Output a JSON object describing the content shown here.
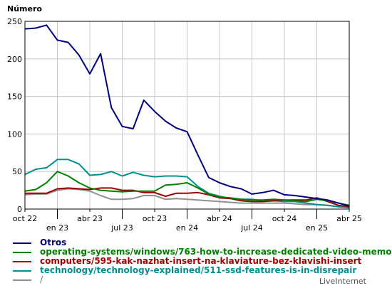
{
  "chart_data": {
    "type": "line",
    "ylabel": "Número",
    "ylim": [
      0,
      250
    ],
    "yticks": [
      0,
      50,
      100,
      150,
      200,
      250
    ],
    "grid": true,
    "legend_position": "bottom",
    "x": [
      "2022-10",
      "2022-11",
      "2022-12",
      "2023-01",
      "2023-02",
      "2023-03",
      "2023-04",
      "2023-05",
      "2023-06",
      "2023-07",
      "2023-08",
      "2023-09",
      "2023-10",
      "2023-11",
      "2023-12",
      "2024-01",
      "2024-02",
      "2024-03",
      "2024-04",
      "2024-05",
      "2024-06",
      "2024-07",
      "2024-08",
      "2024-09",
      "2024-10",
      "2024-11",
      "2024-12",
      "2025-01",
      "2025-02",
      "2025-03",
      "2025-04"
    ],
    "xticks": [
      {
        "index": 0,
        "label": "oct 22",
        "row": 0
      },
      {
        "index": 3,
        "label": "en 23",
        "row": 1
      },
      {
        "index": 6,
        "label": "abr 23",
        "row": 0
      },
      {
        "index": 9,
        "label": "jul 23",
        "row": 1
      },
      {
        "index": 12,
        "label": "oct 23",
        "row": 0
      },
      {
        "index": 15,
        "label": "en 24",
        "row": 1
      },
      {
        "index": 18,
        "label": "abr 24",
        "row": 0
      },
      {
        "index": 21,
        "label": "jul 24",
        "row": 1
      },
      {
        "index": 24,
        "label": "oct 24",
        "row": 0
      },
      {
        "index": 27,
        "label": "en 25",
        "row": 1
      },
      {
        "index": 30,
        "label": "abr 25",
        "row": 0
      }
    ],
    "series": [
      {
        "name": "Otros",
        "color": "#00007f",
        "values": [
          240,
          241,
          245,
          225,
          222,
          205,
          180,
          207,
          135,
          110,
          107,
          145,
          130,
          117,
          108,
          103,
          72,
          42,
          35,
          30,
          27,
          20,
          22,
          25,
          19,
          18,
          16,
          14,
          12,
          8,
          4
        ]
      },
      {
        "name": "operating-systems/windows/763-how-to-increase-dedicated-video-memo",
        "color": "#008000",
        "values": [
          24,
          26,
          35,
          50,
          44,
          35,
          28,
          25,
          24,
          23,
          24,
          24,
          24,
          32,
          33,
          35,
          28,
          20,
          16,
          15,
          13,
          12,
          12,
          13,
          12,
          11,
          10,
          13,
          11,
          8,
          5
        ]
      },
      {
        "name": "computers/595-kak-nazhat-insert-na-klaviature-bez-klavishi-insert",
        "color": "#a00000",
        "values": [
          21,
          21,
          21,
          27,
          28,
          27,
          26,
          28,
          28,
          25,
          25,
          22,
          22,
          17,
          21,
          21,
          22,
          19,
          15,
          14,
          11,
          10,
          10,
          11,
          12,
          12,
          12,
          15,
          10,
          5,
          3
        ]
      },
      {
        "name": "technology/technology-explained/511-ssd-features-is-in-disrepair",
        "color": "#009090",
        "values": [
          46,
          53,
          55,
          66,
          66,
          60,
          45,
          46,
          50,
          44,
          49,
          45,
          43,
          44,
          44,
          43,
          30,
          21,
          17,
          14,
          13,
          13,
          11,
          11,
          10,
          10,
          8,
          6,
          5,
          3,
          2
        ]
      },
      {
        "name": "/",
        "color": "#909090",
        "values": [
          19,
          20,
          20,
          25,
          27,
          26,
          24,
          18,
          13,
          13,
          14,
          18,
          18,
          13,
          14,
          13,
          12,
          11,
          10,
          9,
          8,
          8,
          8,
          8,
          8,
          7,
          6,
          6,
          5,
          3,
          2
        ]
      }
    ]
  },
  "credit": "LiveInternet"
}
